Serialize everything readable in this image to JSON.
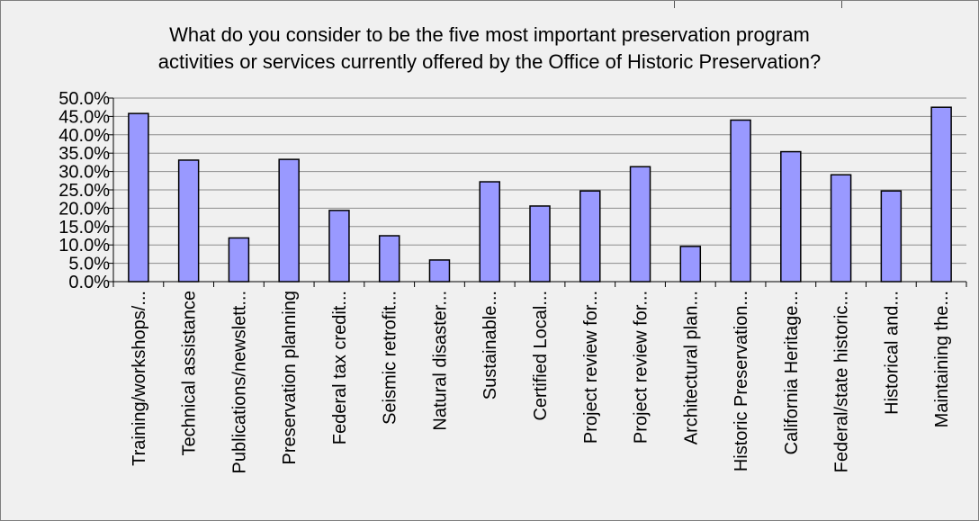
{
  "chart_data": {
    "type": "bar",
    "title_lines": [
      "What do you consider to be the five most important preservation program",
      "activities or services currently offered by the Office of Historic Preservation?"
    ],
    "categories": [
      "Training/workshops/...",
      "Technical assistance",
      "Publications/newslett...",
      "Preservation planning",
      "Federal tax credit...",
      "Seismic retrofit...",
      "Natural disaster...",
      "Sustainable...",
      "Certified Local...",
      "Project review for...",
      "Project review for...",
      "Architectural plan...",
      "Historic Preservation...",
      "California Heritage...",
      "Federal/state historic...",
      "Historical and...",
      "Maintaining the..."
    ],
    "values": [
      45.8,
      33.1,
      11.9,
      33.3,
      19.4,
      12.5,
      5.9,
      27.2,
      20.6,
      24.7,
      31.3,
      9.6,
      44.0,
      35.4,
      29.1,
      24.7,
      47.5
    ],
    "ylim": [
      0,
      50
    ],
    "y_ticks": [
      "0.0%",
      "5.0%",
      "10.0%",
      "15.0%",
      "20.0%",
      "25.0%",
      "30.0%",
      "35.0%",
      "40.0%",
      "45.0%",
      "50.0%"
    ],
    "grid": true,
    "legend": "none",
    "colors": {
      "bar_fill": "#9999ff",
      "bar_stroke": "#000000",
      "gridline": "#8c8c8c",
      "background": "#f0f0f0"
    }
  }
}
